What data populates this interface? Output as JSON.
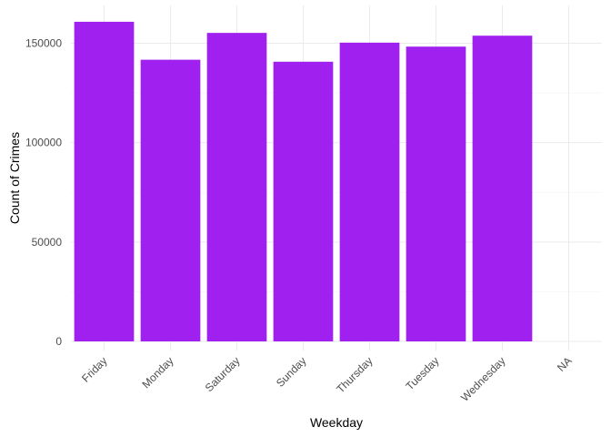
{
  "chart_data": {
    "type": "bar",
    "title": "",
    "xlabel": "Weekday",
    "ylabel": "Count of Crimes",
    "categories": [
      "Friday",
      "Monday",
      "Saturday",
      "Sunday",
      "Thursday",
      "Tuesday",
      "Wednesday",
      "NA"
    ],
    "values": [
      160800,
      141700,
      155200,
      140700,
      150300,
      148300,
      153800,
      null
    ],
    "yticks": [
      0,
      50000,
      100000,
      150000
    ],
    "ylim": [
      0,
      165000
    ],
    "bar_color": "#A020F0",
    "grid": true,
    "legend": "none"
  }
}
